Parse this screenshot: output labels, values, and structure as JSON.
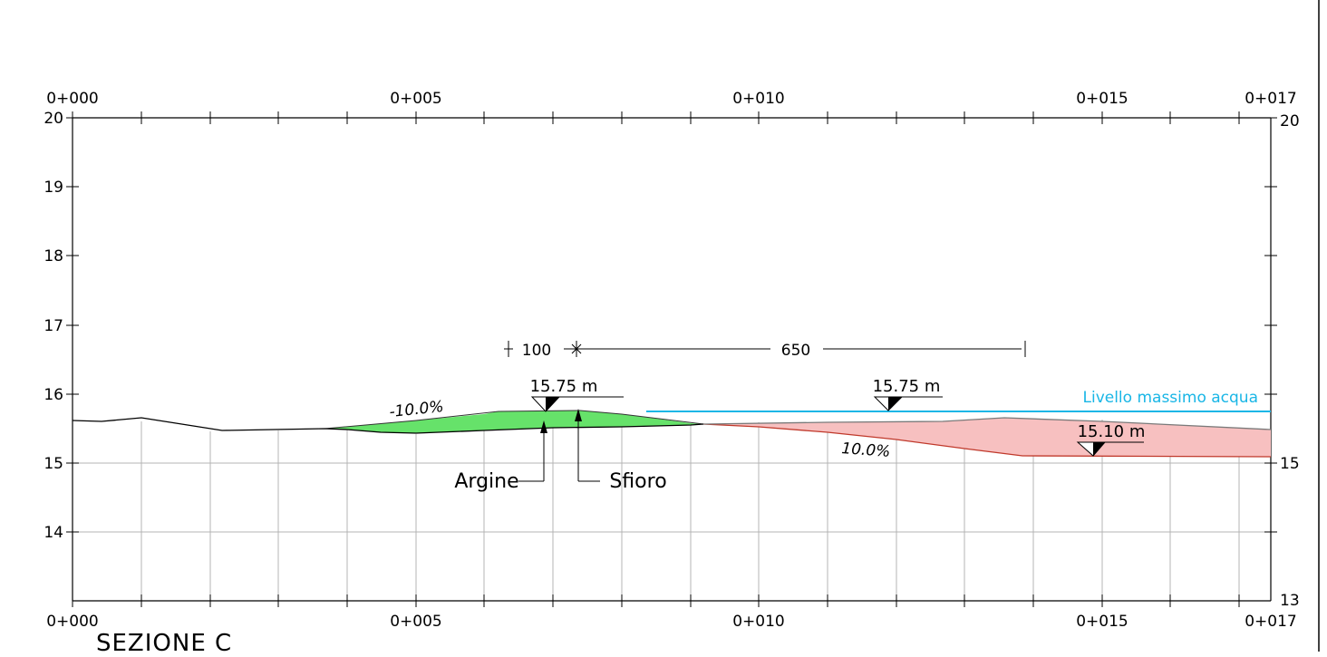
{
  "section_title": "SEZIONE C",
  "chainage": {
    "top_labels": [
      "0+000",
      "0+005",
      "0+010",
      "0+015",
      "0+017"
    ],
    "bottom_labels": [
      "0+000",
      "0+005",
      "0+010",
      "0+015",
      "0+017"
    ]
  },
  "elevation": {
    "left_labels": [
      "20",
      "19",
      "18",
      "17",
      "16",
      "15",
      "14"
    ],
    "right_labels": [
      "20",
      "15",
      "13"
    ]
  },
  "dimensions": {
    "d1": "100",
    "d2": "650"
  },
  "levels": {
    "l1": "15.75 m",
    "l2": "15.75 m",
    "l3": "15.10 m"
  },
  "slopes": {
    "left": "-10.0%",
    "right": "10.0%"
  },
  "callouts": {
    "argine": "Argine",
    "sfioro": "Sfioro"
  },
  "water_level_label": "Livello massimo acqua",
  "colors": {
    "fill_area": "#66e26a",
    "cut_area": "#f7c0c0",
    "water_line": "#19b6e6",
    "cut_line": "#c0392b",
    "grid": "#b4b4b4"
  }
}
